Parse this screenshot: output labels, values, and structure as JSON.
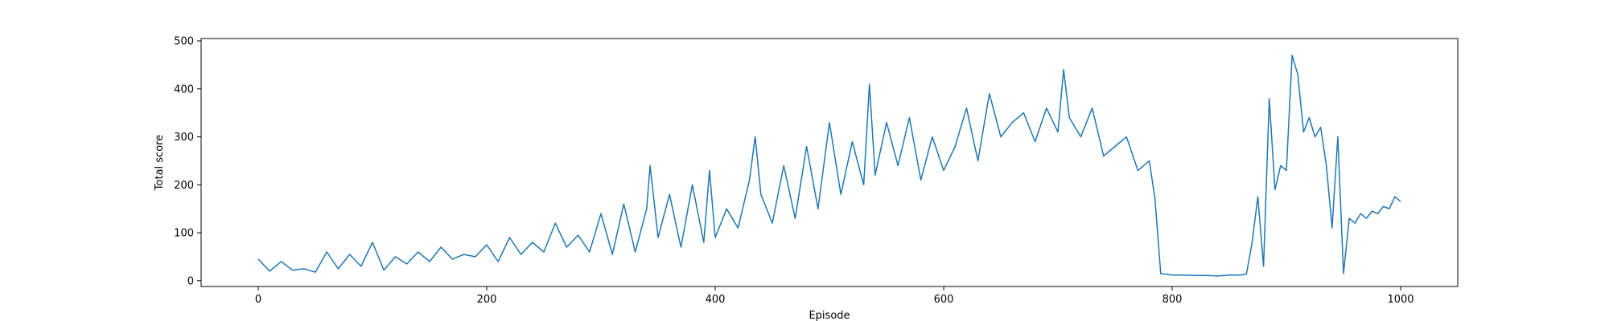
{
  "chart_data": {
    "type": "line",
    "title": "",
    "xlabel": "Episode",
    "ylabel": "Total score",
    "xlim": [
      -50,
      1050
    ],
    "ylim": [
      -12,
      505
    ],
    "xticks": [
      0,
      200,
      400,
      600,
      800,
      1000
    ],
    "yticks": [
      0,
      100,
      200,
      300,
      400,
      500
    ],
    "grid": false,
    "legend": "none",
    "line_color": "#1f77b4",
    "series": [
      {
        "x": [
          0,
          10,
          20,
          30,
          40,
          50,
          60,
          70,
          80,
          90,
          100,
          110,
          120,
          130,
          140,
          150,
          160,
          170,
          180,
          190,
          200,
          210,
          220,
          230,
          240,
          250,
          260,
          270,
          280,
          290,
          300,
          310,
          320,
          330,
          340,
          343,
          350,
          360,
          370,
          380,
          390,
          395,
          400,
          410,
          420,
          430,
          435,
          440,
          450,
          460,
          470,
          480,
          490,
          500,
          510,
          520,
          530,
          535,
          540,
          550,
          560,
          570,
          580,
          590,
          600,
          610,
          620,
          630,
          640,
          650,
          660,
          670,
          680,
          690,
          700,
          705,
          710,
          720,
          730,
          740,
          750,
          760,
          770,
          780,
          785,
          790,
          800,
          810,
          820,
          830,
          840,
          850,
          860,
          865,
          870,
          875,
          880,
          885,
          890,
          895,
          900,
          905,
          910,
          915,
          920,
          925,
          930,
          935,
          940,
          945,
          950,
          955,
          960,
          965,
          970,
          975,
          980,
          985,
          990,
          995,
          1000
        ],
        "values": [
          45,
          20,
          40,
          22,
          25,
          18,
          60,
          25,
          55,
          30,
          80,
          22,
          50,
          35,
          60,
          40,
          70,
          45,
          55,
          50,
          75,
          40,
          90,
          55,
          80,
          60,
          120,
          70,
          95,
          60,
          140,
          55,
          160,
          60,
          150,
          240,
          90,
          180,
          70,
          200,
          80,
          230,
          90,
          150,
          110,
          210,
          300,
          180,
          120,
          240,
          130,
          280,
          150,
          330,
          180,
          290,
          200,
          410,
          220,
          330,
          240,
          340,
          210,
          300,
          230,
          280,
          360,
          250,
          390,
          300,
          330,
          350,
          290,
          360,
          310,
          440,
          340,
          300,
          360,
          260,
          280,
          300,
          230,
          250,
          170,
          15,
          12,
          12,
          11,
          11,
          10,
          12,
          12,
          14,
          80,
          175,
          30,
          380,
          190,
          240,
          230,
          470,
          430,
          310,
          340,
          300,
          320,
          240,
          110,
          300,
          15,
          130,
          120,
          140,
          130,
          145,
          140,
          155,
          150,
          175,
          165
        ]
      }
    ]
  }
}
